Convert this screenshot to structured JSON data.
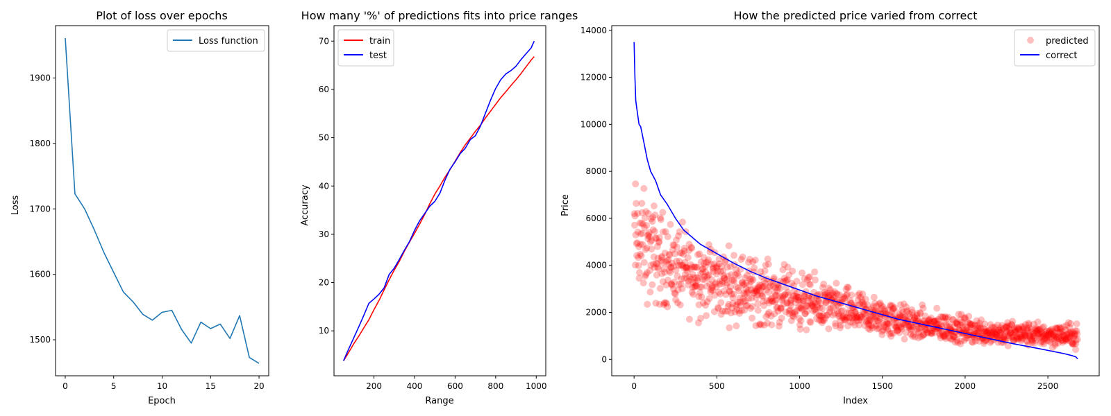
{
  "chart_data": [
    {
      "type": "line",
      "title": "Plot of loss over epochs",
      "xlabel": "Epoch",
      "ylabel": "Loss",
      "xlim": [
        -1,
        21
      ],
      "ylim": [
        1445,
        1980
      ],
      "xticks": [
        0,
        5,
        10,
        15,
        20
      ],
      "yticks": [
        1500,
        1600,
        1700,
        1800,
        1900
      ],
      "legend_position": "top-right",
      "grid": false,
      "series": [
        {
          "name": "Loss function",
          "color": "#1f77b4",
          "x": [
            0,
            1,
            2,
            3,
            4,
            5,
            6,
            7,
            8,
            9,
            10,
            11,
            12,
            13,
            14,
            15,
            16,
            17,
            18,
            19,
            20
          ],
          "y": [
            1961,
            1723,
            1700,
            1668,
            1633,
            1603,
            1573,
            1558,
            1539,
            1530,
            1542,
            1545,
            1516,
            1495,
            1527,
            1517,
            1524,
            1502,
            1537,
            1473,
            1464
          ]
        }
      ]
    },
    {
      "type": "line",
      "title": "How many '%' of predictions fits into price ranges",
      "xlabel": "Range",
      "ylabel": "Accuracy",
      "xlim": [
        3,
        1047
      ],
      "ylim": [
        0.7,
        73.2
      ],
      "xticks": [
        200,
        400,
        600,
        800,
        1000
      ],
      "yticks": [
        10,
        20,
        30,
        40,
        50,
        60,
        70
      ],
      "legend_position": "top-left",
      "grid": false,
      "series": [
        {
          "name": "train",
          "color": "#ff0000",
          "x": [
            50,
            75,
            100,
            125,
            150,
            175,
            200,
            225,
            250,
            275,
            300,
            325,
            350,
            375,
            400,
            425,
            450,
            475,
            500,
            525,
            550,
            575,
            600,
            625,
            650,
            675,
            700,
            725,
            750,
            775,
            800,
            825,
            850,
            875,
            900,
            925,
            950,
            975,
            990
          ],
          "y": [
            3.8,
            5.5,
            7.3,
            8.9,
            10.6,
            12.3,
            14.4,
            16.3,
            18.5,
            20.6,
            22.6,
            24.4,
            26.5,
            28.4,
            30.2,
            32.1,
            34.1,
            36.3,
            38.3,
            40.0,
            41.8,
            43.4,
            45.1,
            46.9,
            48.5,
            49.9,
            51.3,
            52.6,
            54.1,
            55.5,
            56.9,
            58.3,
            59.5,
            60.8,
            62.0,
            63.3,
            64.7,
            66.1,
            66.8
          ]
        },
        {
          "name": "test",
          "color": "#0000ff",
          "x": [
            50,
            75,
            100,
            125,
            150,
            175,
            200,
            225,
            250,
            275,
            300,
            325,
            350,
            375,
            400,
            425,
            450,
            475,
            500,
            525,
            550,
            575,
            600,
            625,
            650,
            675,
            700,
            725,
            750,
            775,
            800,
            825,
            850,
            875,
            900,
            925,
            950,
            975,
            990
          ],
          "y": [
            3.8,
            6.2,
            8.5,
            10.8,
            13.2,
            15.7,
            16.6,
            17.6,
            18.9,
            21.7,
            23.0,
            24.8,
            26.7,
            28.5,
            30.8,
            32.8,
            34.3,
            35.8,
            36.8,
            38.5,
            41.2,
            43.5,
            45.0,
            46.7,
            47.8,
            49.6,
            50.4,
            52.4,
            55.1,
            57.8,
            60.2,
            62.0,
            63.2,
            63.9,
            64.8,
            66.2,
            67.4,
            68.6,
            70.0
          ]
        }
      ]
    },
    {
      "type": "scatter",
      "title": "How the predicted price varied from correct",
      "xlabel": "Index",
      "ylabel": "Price",
      "xlim": [
        -135,
        2810
      ],
      "ylim": [
        -700,
        14200
      ],
      "xticks": [
        0,
        500,
        1000,
        1500,
        2000,
        2500
      ],
      "yticks": [
        0,
        2000,
        4000,
        6000,
        8000,
        10000,
        12000,
        14000
      ],
      "legend_position": "top-right",
      "grid": false,
      "n_points": 2680,
      "series": [
        {
          "name": "predicted",
          "kind": "scatter",
          "color": "#ff0000",
          "alpha": 0.25,
          "note_trend_x": [
            0,
            100,
            250,
            500,
            750,
            1000,
            1250,
            1500,
            1750,
            2000,
            2250,
            2500,
            2680
          ],
          "note_trend_y": [
            5200,
            4600,
            3900,
            3300,
            2900,
            2500,
            2100,
            1750,
            1450,
            1250,
            1100,
            1050,
            1000
          ]
        },
        {
          "name": "correct",
          "kind": "line",
          "color": "#0000ff",
          "x": [
            0,
            5,
            10,
            20,
            30,
            40,
            60,
            80,
            100,
            130,
            160,
            200,
            250,
            300,
            350,
            400,
            500,
            600,
            700,
            800,
            900,
            1000,
            1100,
            1200,
            1300,
            1400,
            1500,
            1600,
            1700,
            1800,
            1900,
            2000,
            2100,
            2200,
            2300,
            2400,
            2500,
            2600,
            2650,
            2670,
            2680
          ],
          "y": [
            13500,
            12000,
            11000,
            10500,
            10000,
            9900,
            9200,
            8500,
            8000,
            7600,
            7000,
            6600,
            6000,
            5500,
            5200,
            4900,
            4500,
            4100,
            3750,
            3450,
            3200,
            2950,
            2700,
            2500,
            2300,
            2100,
            1900,
            1700,
            1550,
            1400,
            1250,
            1100,
            950,
            800,
            650,
            520,
            380,
            240,
            150,
            100,
            20
          ]
        }
      ]
    }
  ]
}
